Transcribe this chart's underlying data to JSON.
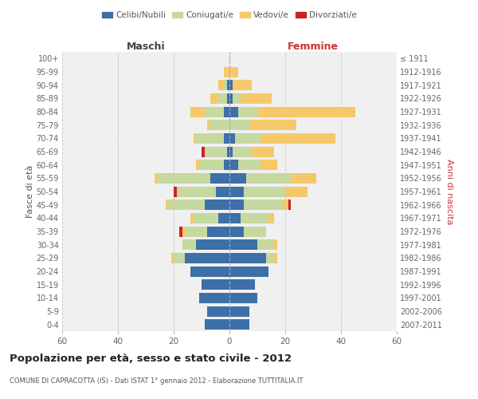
{
  "age_groups": [
    "0-4",
    "5-9",
    "10-14",
    "15-19",
    "20-24",
    "25-29",
    "30-34",
    "35-39",
    "40-44",
    "45-49",
    "50-54",
    "55-59",
    "60-64",
    "65-69",
    "70-74",
    "75-79",
    "80-84",
    "85-89",
    "90-94",
    "95-99",
    "100+"
  ],
  "birth_years": [
    "2007-2011",
    "2002-2006",
    "1997-2001",
    "1992-1996",
    "1987-1991",
    "1982-1986",
    "1977-1981",
    "1972-1976",
    "1967-1971",
    "1962-1966",
    "1957-1961",
    "1952-1956",
    "1947-1951",
    "1942-1946",
    "1937-1941",
    "1932-1936",
    "1927-1931",
    "1922-1926",
    "1917-1921",
    "1912-1916",
    "≤ 1911"
  ],
  "male_celibi": [
    9,
    8,
    11,
    10,
    14,
    16,
    12,
    8,
    4,
    9,
    5,
    7,
    2,
    1,
    2,
    0,
    2,
    1,
    1,
    0,
    0
  ],
  "male_coniugati": [
    0,
    0,
    0,
    0,
    0,
    4,
    5,
    8,
    9,
    13,
    14,
    19,
    9,
    8,
    10,
    7,
    7,
    3,
    1,
    0,
    0
  ],
  "male_vedovi": [
    0,
    0,
    0,
    0,
    0,
    1,
    0,
    1,
    1,
    1,
    0,
    1,
    1,
    0,
    1,
    1,
    5,
    3,
    2,
    2,
    0
  ],
  "male_divorziati": [
    0,
    0,
    0,
    0,
    0,
    0,
    0,
    1,
    0,
    0,
    1,
    0,
    0,
    1,
    0,
    0,
    0,
    0,
    0,
    0,
    0
  ],
  "female_celibi": [
    7,
    7,
    10,
    9,
    14,
    13,
    10,
    5,
    4,
    5,
    5,
    6,
    3,
    1,
    2,
    0,
    3,
    1,
    1,
    0,
    0
  ],
  "female_coniugati": [
    0,
    0,
    0,
    0,
    0,
    3,
    6,
    8,
    10,
    14,
    15,
    16,
    8,
    7,
    9,
    7,
    7,
    3,
    0,
    0,
    0
  ],
  "female_vedovi": [
    0,
    0,
    0,
    0,
    0,
    1,
    1,
    0,
    2,
    2,
    8,
    9,
    6,
    8,
    27,
    17,
    35,
    11,
    7,
    3,
    0
  ],
  "female_divorziati": [
    0,
    0,
    0,
    0,
    0,
    0,
    0,
    0,
    0,
    1,
    0,
    0,
    0,
    0,
    0,
    0,
    0,
    0,
    0,
    0,
    0
  ],
  "color_celibi": "#3d6fa8",
  "color_coniugati": "#c5d9a0",
  "color_vedovi": "#f5c96a",
  "color_divorziati": "#cc2222",
  "title": "Popolazione per età, sesso e stato civile - 2012",
  "subtitle": "COMUNE DI CAPRACOTTA (IS) - Dati ISTAT 1° gennaio 2012 - Elaborazione TUTTITALIA.IT",
  "xlabel_left": "Maschi",
  "xlabel_right": "Femmine",
  "ylabel_left": "Fasce di età",
  "ylabel_right": "Anni di nascita",
  "xlim": 60,
  "bg_color": "#f0f0f0",
  "grid_color": "#cccccc"
}
